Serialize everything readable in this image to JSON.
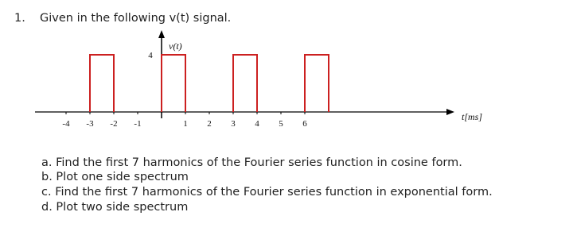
{
  "question": {
    "number": "1.",
    "text": "Given in the following v(t) signal.",
    "items": [
      "a. Find the first 7 harmonics of the Fourier series function in cosine form.",
      "b. Plot one side spectrum",
      "c. Find the first 7 harmonics of the Fourier series function in exponential form.",
      "d. Plot two side spectrum"
    ]
  },
  "chart_data": {
    "type": "pulse",
    "ylabel": "v(t)",
    "xlabel": "t[ms]",
    "color": "#cc2020",
    "amplitude": 4,
    "pulses": [
      {
        "start": -3,
        "end": -2
      },
      {
        "start": 0,
        "end": 1
      },
      {
        "start": 3,
        "end": 4
      },
      {
        "start": 6,
        "end": 7
      }
    ],
    "xlim": [
      -5.3,
      12
    ],
    "ylim": [
      0,
      5.5
    ],
    "xticks": [
      -4,
      -3,
      -2,
      -1,
      1,
      2,
      3,
      4,
      5,
      6
    ]
  }
}
